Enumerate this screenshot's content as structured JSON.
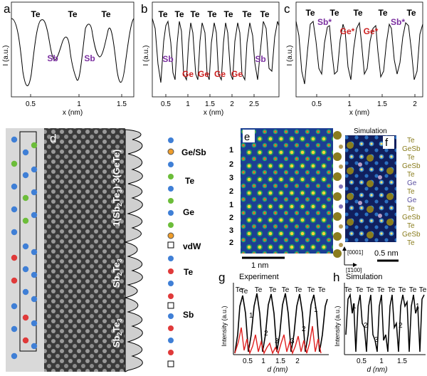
{
  "panels": {
    "a": {
      "letter": "a",
      "ylabel": "I (a.u.)",
      "xlabel": "x (nm)",
      "ticks": [
        "0.5",
        "1",
        "1.5"
      ],
      "labels": [
        "Te",
        "Te",
        "Te",
        "Sb",
        "Sb"
      ]
    },
    "b": {
      "letter": "b",
      "ylabel": "I (a.u.)",
      "xlabel": "x (nm)",
      "ticks": [
        "0.5",
        "1",
        "1.5",
        "2",
        "2.5"
      ],
      "te": [
        "Te",
        "Te",
        "Te",
        "Te",
        "Te",
        "Te",
        "Te"
      ],
      "sb": [
        "Sb",
        "Sb"
      ],
      "ge": [
        "Ge",
        "Ge",
        "Ge",
        "Ge"
      ]
    },
    "c": {
      "letter": "c",
      "ylabel": "I (a.u.)",
      "xlabel": "x (nm)",
      "ticks": [
        "0.5",
        "1",
        "1.5",
        "2"
      ],
      "te": [
        "Te",
        "Te",
        "Te",
        "Te",
        "Te"
      ],
      "sbstar": [
        "Sb*",
        "Sb*"
      ],
      "gestar": [
        "Ge*",
        "Ge*"
      ]
    },
    "d": {
      "letter": "d",
      "layer_labels": {
        "l1_prefix": "1(Sb",
        "l1_sub1": "2",
        "l1_mid": "Te",
        "l1_sub2": "3",
        "l1_suffix": ")·3(GeTe)",
        "l2_main": "Sb",
        "l2_sub1": "2",
        "l2_mid": "Te",
        "l2_sub2": "3"
      },
      "legend": [
        "Ge/Sb",
        "Te",
        "Ge",
        "vdW",
        "Te",
        "Sb"
      ]
    },
    "e": {
      "letter": "e",
      "row_labels": [
        "1",
        "2",
        "3",
        "2",
        "1",
        "2",
        "3",
        "2",
        "1"
      ],
      "scale": "1 nm"
    },
    "f": {
      "letter": "f",
      "title": "Simulation",
      "scale": "0.5 nm",
      "axis1": "[0001]",
      "axis2": "[1̄100]",
      "species": [
        "Te",
        "GeSb",
        "Te",
        "GeSb",
        "Te",
        "Ge",
        "Te",
        "Ge",
        "Te",
        "GeSb",
        "Te",
        "GeSb",
        "Te"
      ]
    },
    "g": {
      "letter": "g",
      "title": "Experiment",
      "ylabel": "Intensity (a.u.)",
      "xlabel": "d (nm)",
      "ticks": [
        "0.5",
        "1",
        "1.5",
        "2"
      ],
      "te": [
        "Te",
        "Te",
        "Te",
        "Te",
        "Te",
        "Te",
        "Te",
        "Te"
      ],
      "peaks": [
        "1",
        "2",
        "3",
        "3",
        "2",
        "1"
      ]
    },
    "h": {
      "letter": "h",
      "title": "Simulation",
      "ylabel": "Intensity (a.u.)",
      "xlabel": "d (nm)",
      "ticks": [
        "0.5",
        "1",
        "1.5"
      ],
      "te": [
        "Te",
        "Te",
        "Te",
        "Te",
        "Te",
        "Te",
        "Te",
        "Te"
      ],
      "peaks": [
        "1",
        "2",
        "3",
        "2",
        "1"
      ]
    }
  },
  "colors": {
    "te": "#000000",
    "sb": "#7b2fa0",
    "ge": "#cc1f1f",
    "blue_atom": "#3f7fd6",
    "green_atom": "#6cbd3a",
    "red_atom": "#e03a3a",
    "olive_atom": "#8a7d1e"
  }
}
